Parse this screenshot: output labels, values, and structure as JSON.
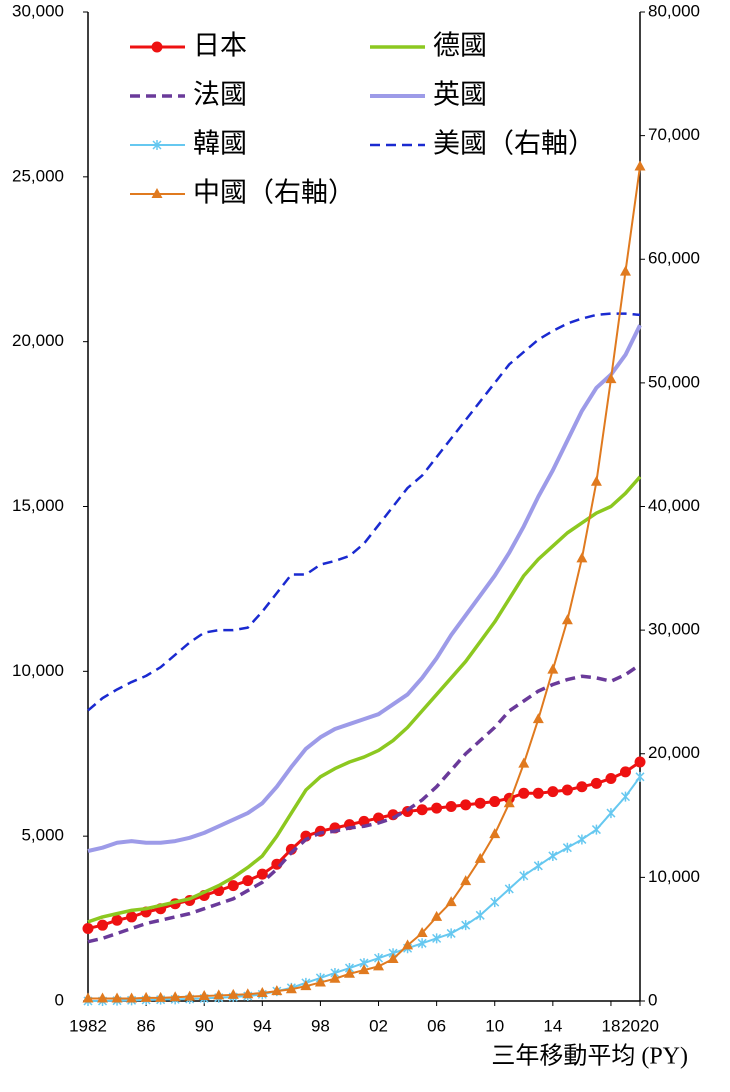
{
  "chart_data": {
    "type": "line",
    "x_label": "三年移動平均 (PY)",
    "x": [
      1982,
      1983,
      1984,
      1985,
      1986,
      1987,
      1988,
      1989,
      1990,
      1991,
      1992,
      1993,
      1994,
      1995,
      1996,
      1997,
      1998,
      1999,
      2000,
      2001,
      2002,
      2003,
      2004,
      2005,
      2006,
      2007,
      2008,
      2009,
      2010,
      2011,
      2012,
      2013,
      2014,
      2015,
      2016,
      2017,
      2018,
      2019,
      2020
    ],
    "xlim": [
      1982,
      2020
    ],
    "xticks": [
      1982,
      {
        "value": 1986,
        "label": "86"
      },
      {
        "value": 1990,
        "label": "90"
      },
      {
        "value": 1994,
        "label": "94"
      },
      {
        "value": 1998,
        "label": "98"
      },
      {
        "value": 2002,
        "label": "02"
      },
      {
        "value": 2006,
        "label": "06"
      },
      {
        "value": 2010,
        "label": "10"
      },
      {
        "value": 2014,
        "label": "14"
      },
      {
        "value": 2018,
        "label": "18"
      },
      2020
    ],
    "ylim": [
      0,
      30000
    ],
    "yticks": [
      0,
      {
        "value": 5000,
        "label": "5,000"
      },
      {
        "value": 10000,
        "label": "10,000"
      },
      {
        "value": 15000,
        "label": "15,000"
      },
      {
        "value": 20000,
        "label": "20,000"
      },
      {
        "value": 25000,
        "label": "25,000"
      },
      {
        "value": 30000,
        "label": "30,000"
      }
    ],
    "y2lim": [
      0,
      80000
    ],
    "y2ticks": [
      0,
      {
        "value": 10000,
        "label": "10,000"
      },
      {
        "value": 20000,
        "label": "20,000"
      },
      {
        "value": 30000,
        "label": "30,000"
      },
      {
        "value": 40000,
        "label": "40,000"
      },
      {
        "value": 50000,
        "label": "50,000"
      },
      {
        "value": 60000,
        "label": "60,000"
      },
      {
        "value": 70000,
        "label": "70,000"
      },
      {
        "value": 80000,
        "label": "80,000"
      }
    ],
    "grid": false,
    "legend": "top-left",
    "series": [
      {
        "name": "日本",
        "color": "#ee1111",
        "marker": "circle",
        "dash": false,
        "line_width": 3,
        "values": [
          2200,
          2300,
          2450,
          2550,
          2700,
          2800,
          2950,
          3050,
          3200,
          3350,
          3500,
          3650,
          3850,
          4150,
          4600,
          5000,
          5150,
          5250,
          5350,
          5450,
          5550,
          5650,
          5750,
          5800,
          5850,
          5900,
          5950,
          6000,
          6050,
          6150,
          6300,
          6300,
          6350,
          6400,
          6500,
          6600,
          6750,
          6950,
          7250
        ]
      },
      {
        "name": "德國",
        "color": "#8cc820",
        "marker": "none",
        "dash": false,
        "line_width": 3.5,
        "values": [
          2400,
          2550,
          2650,
          2750,
          2800,
          2900,
          3000,
          3100,
          3300,
          3500,
          3750,
          4050,
          4400,
          5000,
          5700,
          6400,
          6800,
          7050,
          7250,
          7400,
          7600,
          7900,
          8300,
          8800,
          9300,
          9800,
          10300,
          10900,
          11500,
          12200,
          12900,
          13400,
          13800,
          14200,
          14500,
          14800,
          15000,
          15400,
          15900
        ]
      },
      {
        "name": "法國",
        "color": "#6a3a9a",
        "marker": "none",
        "dash": true,
        "line_width": 3.5,
        "values": [
          1800,
          1900,
          2050,
          2200,
          2350,
          2450,
          2550,
          2650,
          2800,
          2950,
          3100,
          3350,
          3600,
          4000,
          4500,
          4900,
          5100,
          5150,
          5250,
          5300,
          5400,
          5550,
          5800,
          6100,
          6500,
          7000,
          7500,
          7900,
          8300,
          8800,
          9100,
          9400,
          9600,
          9750,
          9850,
          9800,
          9700,
          9900,
          10200
        ]
      },
      {
        "name": "英國",
        "color": "#9d9be8",
        "marker": "none",
        "dash": false,
        "line_width": 4,
        "values": [
          4550,
          4650,
          4800,
          4850,
          4800,
          4800,
          4850,
          4950,
          5100,
          5300,
          5500,
          5700,
          6000,
          6500,
          7100,
          7650,
          8000,
          8250,
          8400,
          8550,
          8700,
          9000,
          9300,
          9800,
          10400,
          11100,
          11700,
          12300,
          12900,
          13600,
          14400,
          15300,
          16100,
          17000,
          17900,
          18600,
          19000,
          19600,
          20500
        ]
      },
      {
        "name": "韓國",
        "color": "#66c8f0",
        "marker": "x",
        "dash": false,
        "line_width": 2,
        "values": [
          0,
          0,
          10,
          20,
          30,
          40,
          50,
          60,
          80,
          100,
          120,
          150,
          200,
          300,
          400,
          550,
          700,
          850,
          1000,
          1150,
          1300,
          1450,
          1600,
          1750,
          1900,
          2050,
          2300,
          2600,
          3000,
          3400,
          3800,
          4100,
          4400,
          4650,
          4900,
          5200,
          5700,
          6200,
          6800
        ]
      },
      {
        "name": "美國（右軸）",
        "color": "#1a2ad0",
        "marker": "none",
        "dash": true,
        "line_width": 2.5,
        "axis": "y2",
        "values": [
          23500,
          24500,
          25200,
          25800,
          26300,
          27000,
          28000,
          29000,
          29800,
          30000,
          30000,
          30200,
          31500,
          33000,
          34500,
          34500,
          35300,
          35600,
          36000,
          37000,
          38500,
          40000,
          41500,
          42500,
          44000,
          45500,
          47000,
          48500,
          50000,
          51500,
          52500,
          53500,
          54200,
          54800,
          55200,
          55500,
          55600,
          55600,
          55500
        ]
      },
      {
        "name": "中國（右軸）",
        "color": "#e07a1f",
        "marker": "triangle",
        "dash": false,
        "line_width": 2,
        "axis": "y2",
        "values": [
          200,
          200,
          200,
          200,
          250,
          250,
          300,
          350,
          400,
          450,
          500,
          550,
          650,
          800,
          950,
          1200,
          1500,
          1800,
          2200,
          2500,
          2800,
          3400,
          4500,
          5500,
          6800,
          8000,
          9700,
          11500,
          13500,
          16000,
          19200,
          22800,
          26800,
          30800,
          35800,
          42000,
          50300,
          59000,
          67500
        ]
      }
    ]
  }
}
